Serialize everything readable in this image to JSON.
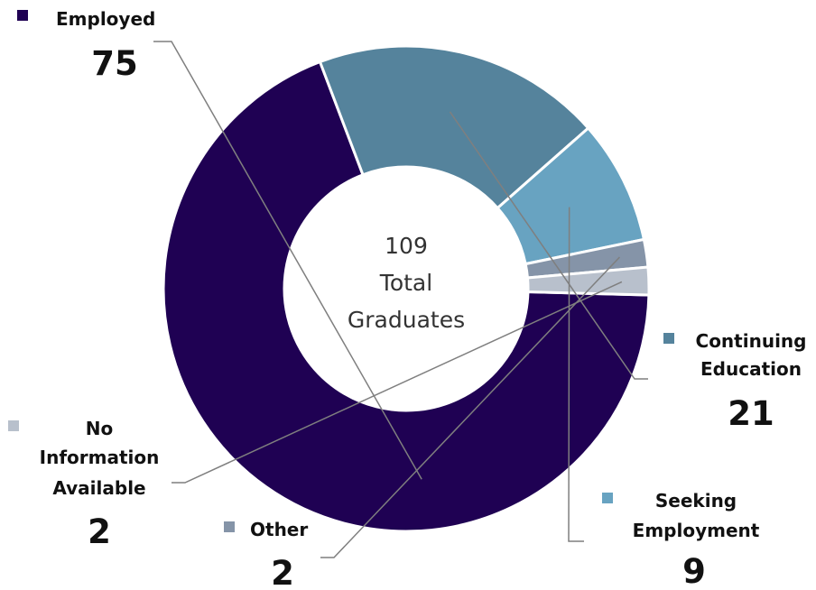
{
  "chart_data": {
    "type": "pie",
    "style": "donut",
    "center_label": {
      "number": "109",
      "line1": "Total",
      "line2": "Graduates"
    },
    "slices": [
      {
        "name": "Employed",
        "label_lines": [
          "Employed"
        ],
        "value": 75,
        "value_label": "75",
        "color": "#1f0153"
      },
      {
        "name": "Continuing Education",
        "label_lines": [
          "Continuing",
          "Education"
        ],
        "value": 21,
        "value_label": "21",
        "color": "#55839c"
      },
      {
        "name": "Seeking Employment",
        "label_lines": [
          "Seeking",
          "Employment"
        ],
        "value": 9,
        "value_label": "9",
        "color": "#68a3c1"
      },
      {
        "name": "Other",
        "label_lines": [
          "Other"
        ],
        "value": 2,
        "value_label": "2",
        "color": "#8594a8"
      },
      {
        "name": "No Information Available",
        "label_lines": [
          "No",
          "Information",
          "Available"
        ],
        "value": 2,
        "value_label": "2",
        "color": "#b8c0cc"
      }
    ]
  }
}
